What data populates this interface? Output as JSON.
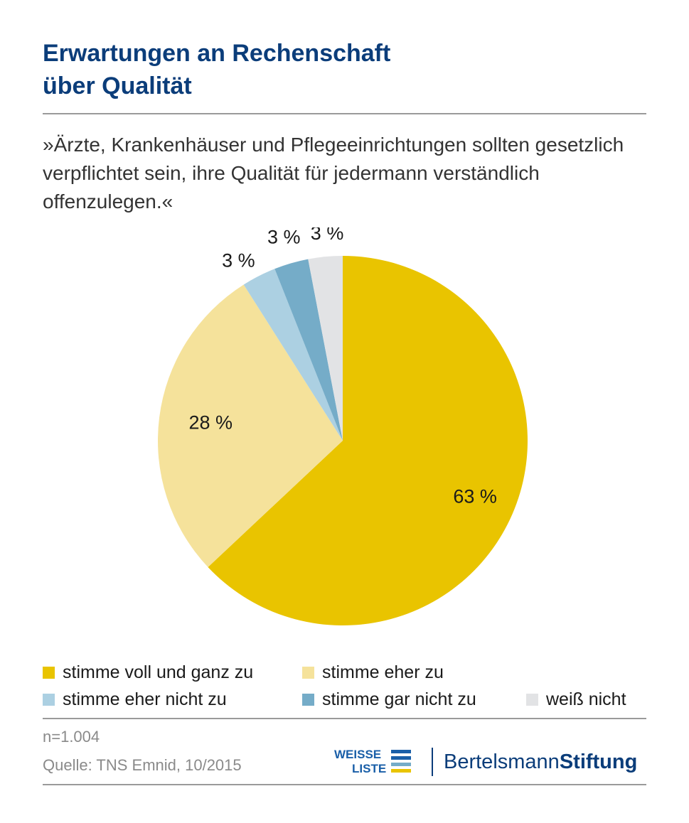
{
  "title_line1": "Erwartungen an Rechenschaft",
  "title_line2": "über Qualität",
  "subtitle": "»Ärzte, Krankenhäuser und Pflegeeinrichtungen sollten gesetzlich verpflichtet sein, ihre Qualität für jedermann verständlich offenzulegen.«",
  "chart_data": {
    "type": "pie",
    "slices": [
      {
        "label": "stimme voll und ganz zu",
        "value": 63,
        "display": "63 %",
        "color": "#e9c400"
      },
      {
        "label": "stimme eher zu",
        "value": 28,
        "display": "28 %",
        "color": "#f5e29b"
      },
      {
        "label": "stimme eher nicht zu",
        "value": 3,
        "display": "3 %",
        "color": "#acd0e2"
      },
      {
        "label": "stimme gar nicht zu",
        "value": 3,
        "display": "3 %",
        "color": "#75acc8"
      },
      {
        "label": "weiß nicht",
        "value": 3,
        "display": "3 %",
        "color": "#e2e3e5"
      }
    ],
    "legend_position": "bottom"
  },
  "footer": {
    "n": "n=1.004",
    "source": "Quelle: TNS Emnid, 10/2015"
  },
  "logos": {
    "weisse_line1": "WEISSE",
    "weisse_line2": "LISTE",
    "bertelsmann_regular": "Bertelsmann",
    "bertelsmann_bold": "Stiftung"
  },
  "colors": {
    "title": "#0b3d7a",
    "rule": "#9a9a9a",
    "weisse_bar_top": "#1a5fa8",
    "weisse_bar_mid": "#75acc8",
    "weisse_bar_low": "#e9c400"
  }
}
